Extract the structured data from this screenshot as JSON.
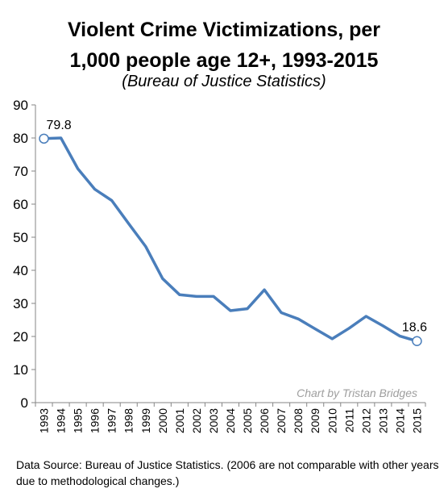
{
  "chart_data": {
    "type": "line",
    "title_line1": "Violent Crime Victimizations, per",
    "title_line2": "1,000 people age 12+, 1993-2015",
    "subtitle": "(Bureau of Justice Statistics)",
    "xlabel": "",
    "ylabel": "",
    "ylim": [
      0,
      90
    ],
    "yticks": [
      0,
      10,
      20,
      30,
      40,
      50,
      60,
      70,
      80,
      90
    ],
    "categories": [
      "1993",
      "1994",
      "1995",
      "1996",
      "1997",
      "1998",
      "1999",
      "2000",
      "2001",
      "2002",
      "2003",
      "2004",
      "2005",
      "2006",
      "2007",
      "2008",
      "2009",
      "2010",
      "2011",
      "2012",
      "2013",
      "2014",
      "2015"
    ],
    "series": [
      {
        "name": "",
        "color": "#4a7ebb",
        "values": [
          79.8,
          80,
          70.7,
          64.5,
          61.1,
          54.1,
          47.2,
          37.5,
          32.6,
          32.1,
          32.1,
          27.8,
          28.4,
          34.1,
          27.2,
          25.3,
          22.3,
          19.3,
          22.5,
          26.1,
          23.2,
          20.1,
          18.6
        ]
      }
    ],
    "annotations": [
      {
        "category": "1993",
        "label": "79.8"
      },
      {
        "category": "2015",
        "label": "18.6"
      }
    ],
    "watermark": "Chart by Tristan Bridges",
    "grid": false
  },
  "note": "Data Source: Bureau of Justice Statistics.  (2006 are not comparable with other years  due to methodological changes.)"
}
